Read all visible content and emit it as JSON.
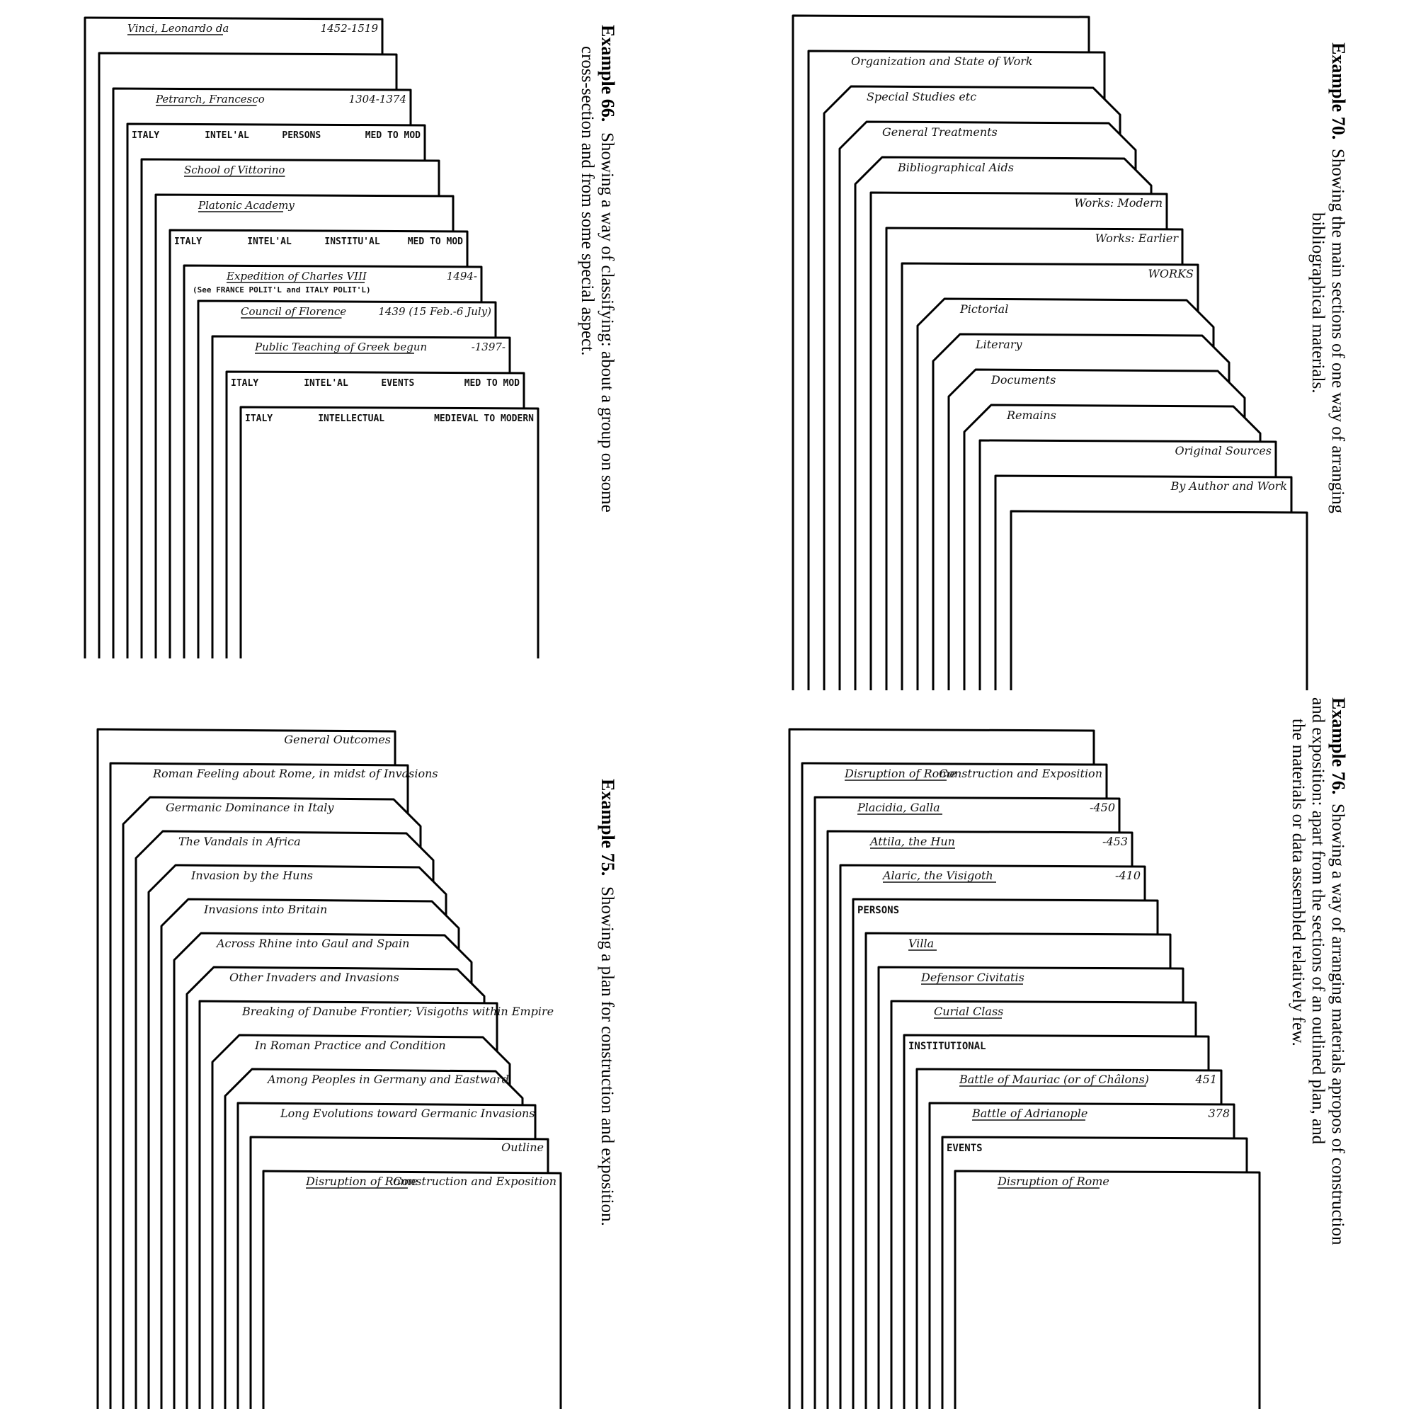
{
  "figures": [
    {
      "id": "ex66",
      "caption": {
        "label": "Example 66.",
        "line1": "Showing a way of classifying: about a group on some",
        "line2": "cross-section and from some special aspect."
      },
      "cards": [
        {
          "left": "Vinci, Leonardo da",
          "right": "1452-1519",
          "style": "hand",
          "underline": true
        },
        {
          "left": "",
          "right": "",
          "style": "hand"
        },
        {
          "left": "Petrarch, Francesco",
          "right": "1304-1374",
          "style": "hand",
          "underline": true
        },
        {
          "left": "ITALY",
          "mid": "INTEL'AL",
          "mid2": "PERSONS",
          "right": "MED TO MOD",
          "style": "caps"
        },
        {
          "left": "School of Vittorino",
          "right": "",
          "style": "hand",
          "underline": true
        },
        {
          "left": "Platonic Academy",
          "right": "",
          "style": "hand",
          "underline": true
        },
        {
          "left": "ITALY",
          "mid": "INTEL'AL",
          "mid2": "INSTITU'AL",
          "right": "MED TO MOD",
          "style": "caps"
        },
        {
          "left": "Expedition of Charles VIII",
          "right": "1494-",
          "sub": "(See FRANCE POLIT'L and ITALY POLIT'L)",
          "style": "hand",
          "underline": true
        },
        {
          "left": "Council of Florence",
          "right": "1439 (15 Feb.-6 July)",
          "style": "hand",
          "underline": true
        },
        {
          "left": "Public Teaching of Greek begun",
          "right": "-1397-",
          "style": "hand",
          "underline": true
        },
        {
          "left": "ITALY",
          "mid": "INTEL'AL",
          "mid2": "EVENTS",
          "right": "MED TO MOD",
          "style": "caps"
        },
        {
          "left": "ITALY",
          "mid": "INTELLECTUAL",
          "mid2": "",
          "right": "MEDIEVAL TO MODERN",
          "style": "caps"
        }
      ]
    },
    {
      "id": "ex70",
      "caption": {
        "label": "Example 70.",
        "line1": "Showing the main sections of one way of arranging",
        "line2": "bibliographical materials."
      },
      "cards": [
        {
          "left": "",
          "right": "",
          "style": "hand"
        },
        {
          "left": "Organization and State of Work",
          "right": "",
          "style": "hand"
        },
        {
          "left": "Special Studies etc",
          "right": "",
          "style": "hand"
        },
        {
          "left": "General Treatments",
          "right": "",
          "style": "hand"
        },
        {
          "left": "Bibliographical Aids",
          "right": "",
          "style": "hand"
        },
        {
          "left": "",
          "right": "Works: Modern",
          "style": "hand"
        },
        {
          "left": "",
          "right": "Works: Earlier",
          "style": "hand"
        },
        {
          "left": "",
          "right": "WORKS",
          "style": "hand"
        },
        {
          "left": "Pictorial",
          "right": "",
          "style": "hand"
        },
        {
          "left": "Literary",
          "right": "",
          "style": "hand"
        },
        {
          "left": "Documents",
          "right": "",
          "style": "hand"
        },
        {
          "left": "Remains",
          "right": "",
          "style": "hand"
        },
        {
          "left": "",
          "right": "Original Sources",
          "style": "hand"
        },
        {
          "left": "",
          "right": "By Author and Work",
          "style": "hand"
        },
        {
          "left": "",
          "right": "",
          "style": "hand"
        }
      ]
    },
    {
      "id": "ex75",
      "caption": {
        "label": "Example 75.",
        "line1": "Showing a plan for construction and exposition.",
        "line2": ""
      },
      "cards": [
        {
          "left": "",
          "right": "General Outcomes",
          "style": "hand"
        },
        {
          "left": "Roman Feeling about Rome, in midst of Invasions",
          "right": "",
          "style": "hand"
        },
        {
          "left": "Germanic Dominance in Italy",
          "right": "",
          "style": "hand"
        },
        {
          "left": "The Vandals in Africa",
          "right": "",
          "style": "hand"
        },
        {
          "left": "Invasion by the Huns",
          "right": "",
          "style": "hand"
        },
        {
          "left": "Invasions into Britain",
          "right": "",
          "style": "hand"
        },
        {
          "left": "Across Rhine into Gaul and Spain",
          "right": "",
          "style": "hand"
        },
        {
          "left": "Other Invaders and Invasions",
          "right": "",
          "style": "hand"
        },
        {
          "left": "Breaking of Danube Frontier; Visigoths within Empire",
          "right": "",
          "style": "hand"
        },
        {
          "left": "In Roman Practice and Condition",
          "right": "",
          "style": "hand"
        },
        {
          "left": "Among Peoples in Germany and Eastward",
          "right": "",
          "style": "hand"
        },
        {
          "left": "Long Evolutions toward Germanic Invasions",
          "right": "",
          "style": "hand"
        },
        {
          "left": "",
          "right": "Outline",
          "style": "hand"
        },
        {
          "left": "Disruption of Rome",
          "right": "Construction and Exposition",
          "style": "hand",
          "underline": true
        }
      ]
    },
    {
      "id": "ex76",
      "caption": {
        "label": "Example 76.",
        "line1": "Showing a way of arranging materials apropos of construction",
        "line2": "and exposition: apart from the sections of an outlined plan, and",
        "line3": "the materials or data assembled relatively few."
      },
      "cards": [
        {
          "left": "",
          "right": "",
          "style": "hand"
        },
        {
          "left": "Disruption of Rome",
          "right": "Construction and Exposition",
          "style": "hand",
          "underline": true
        },
        {
          "left": "Placidia, Galla",
          "right": "-450",
          "style": "hand",
          "underline": true
        },
        {
          "left": "Attila, the Hun",
          "right": "-453",
          "style": "hand",
          "underline": true
        },
        {
          "left": "Alaric, the Visigoth",
          "right": "-410",
          "style": "hand",
          "underline": true
        },
        {
          "left": "PERSONS",
          "right": "",
          "style": "caps"
        },
        {
          "left": "Villa",
          "right": "",
          "style": "hand",
          "underline": true
        },
        {
          "left": "Defensor Civitatis",
          "right": "",
          "style": "hand",
          "underline": true
        },
        {
          "left": "Curial Class",
          "right": "",
          "style": "hand",
          "underline": true
        },
        {
          "left": "INSTITUTIONAL",
          "right": "",
          "style": "caps"
        },
        {
          "left": "Battle of Mauriac (or of Châlons)",
          "right": "451",
          "style": "hand",
          "underline": true
        },
        {
          "left": "Battle of Adrianople",
          "right": "378",
          "style": "hand",
          "underline": true
        },
        {
          "left": "EVENTS",
          "right": "",
          "style": "caps"
        },
        {
          "left": "Disruption of Rome",
          "right": "",
          "style": "hand",
          "underline": true
        }
      ]
    }
  ]
}
